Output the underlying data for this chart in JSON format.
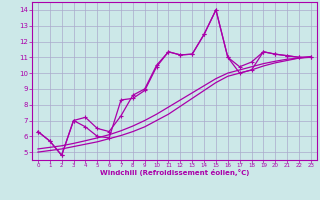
{
  "xlabel": "Windchill (Refroidissement éolien,°C)",
  "bg_color": "#cce8e8",
  "grid_color": "#aaaacc",
  "line_color": "#aa00aa",
  "xlim": [
    -0.5,
    23.5
  ],
  "ylim": [
    4.5,
    14.5
  ],
  "xticks": [
    0,
    1,
    2,
    3,
    4,
    5,
    6,
    7,
    8,
    9,
    10,
    11,
    12,
    13,
    14,
    15,
    16,
    17,
    18,
    19,
    20,
    21,
    22,
    23
  ],
  "yticks": [
    5,
    6,
    7,
    8,
    9,
    10,
    11,
    12,
    13,
    14
  ],
  "series_marked": [
    {
      "x": [
        0,
        1,
        2,
        3,
        4,
        5,
        6,
        7,
        8,
        9,
        10,
        11,
        12,
        13,
        14,
        15,
        16,
        17,
        18,
        19,
        20,
        21,
        22,
        23
      ],
      "y": [
        6.3,
        5.7,
        4.8,
        7.0,
        6.6,
        6.0,
        5.9,
        8.3,
        8.4,
        8.9,
        10.4,
        11.35,
        11.15,
        11.2,
        12.45,
        14.0,
        11.0,
        10.0,
        10.2,
        11.35,
        11.2,
        11.1,
        11.0,
        11.0
      ]
    },
    {
      "x": [
        0,
        1,
        2,
        3,
        4,
        5,
        6,
        7,
        8,
        9,
        10,
        11,
        12,
        13,
        14,
        15,
        16,
        17,
        18,
        19,
        20,
        21,
        22,
        23
      ],
      "y": [
        6.3,
        5.7,
        4.8,
        7.0,
        7.2,
        6.5,
        6.3,
        7.3,
        8.6,
        9.0,
        10.5,
        11.35,
        11.15,
        11.2,
        12.45,
        14.0,
        11.0,
        10.4,
        10.7,
        11.35,
        11.2,
        11.1,
        11.0,
        11.0
      ]
    }
  ],
  "series_smooth": [
    {
      "x": [
        0,
        1,
        2,
        3,
        4,
        5,
        6,
        7,
        8,
        9,
        10,
        11,
        12,
        13,
        14,
        15,
        16,
        17,
        18,
        19,
        20,
        21,
        22,
        23
      ],
      "y": [
        5.0,
        5.1,
        5.2,
        5.35,
        5.5,
        5.65,
        5.85,
        6.05,
        6.3,
        6.6,
        7.0,
        7.4,
        7.9,
        8.4,
        8.9,
        9.4,
        9.8,
        10.0,
        10.2,
        10.45,
        10.65,
        10.8,
        10.95,
        11.0
      ]
    },
    {
      "x": [
        0,
        1,
        2,
        3,
        4,
        5,
        6,
        7,
        8,
        9,
        10,
        11,
        12,
        13,
        14,
        15,
        16,
        17,
        18,
        19,
        20,
        21,
        22,
        23
      ],
      "y": [
        5.2,
        5.3,
        5.4,
        5.55,
        5.72,
        5.9,
        6.1,
        6.35,
        6.65,
        7.0,
        7.4,
        7.85,
        8.3,
        8.75,
        9.2,
        9.65,
        10.0,
        10.2,
        10.4,
        10.6,
        10.75,
        10.88,
        10.95,
        11.05
      ]
    }
  ]
}
